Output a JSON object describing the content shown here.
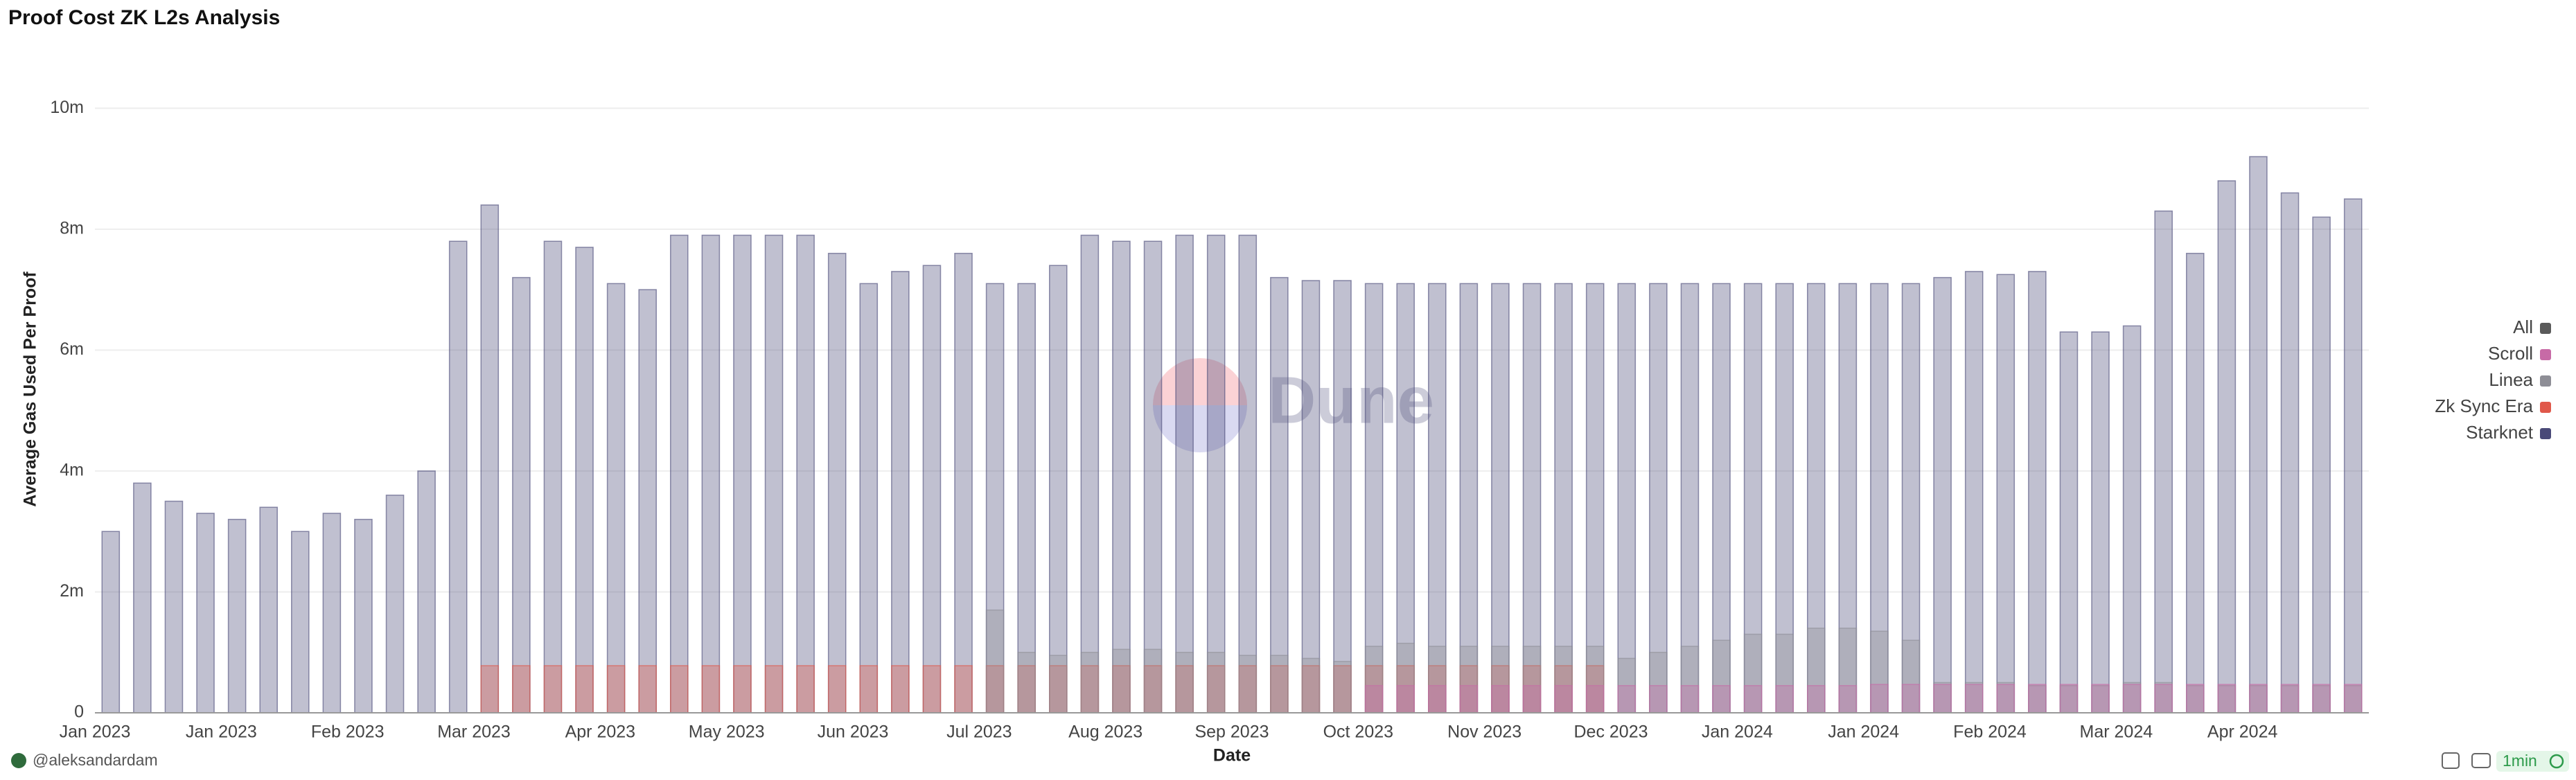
{
  "chart_data": {
    "type": "bar",
    "title": "Proof Cost ZK L2s Analysis",
    "xlabel": "Date",
    "ylabel": "Average Gas Used Per Proof",
    "watermark": "Dune",
    "footer_user": "@aleksandardam",
    "refresh": "1min",
    "grid": true,
    "legend_position": "right",
    "ylim": [
      0,
      11000000
    ],
    "yticks": [
      0,
      {
        "value": 2000000,
        "label": "2m"
      },
      {
        "value": 4000000,
        "label": "4m"
      },
      {
        "value": 6000000,
        "label": "6m"
      },
      {
        "value": 8000000,
        "label": "8m"
      },
      {
        "value": 10000000,
        "label": "10m"
      }
    ],
    "categories": [
      "Jan 2023",
      null,
      null,
      null,
      "Jan 2023",
      null,
      null,
      null,
      "Feb 2023",
      null,
      null,
      null,
      "Mar 2023",
      null,
      null,
      null,
      "Apr 2023",
      null,
      null,
      null,
      "May 2023",
      null,
      null,
      null,
      "Jun 2023",
      null,
      null,
      null,
      "Jul 2023",
      null,
      null,
      null,
      "Aug 2023",
      null,
      null,
      null,
      "Sep 2023",
      null,
      null,
      null,
      "Oct 2023",
      null,
      null,
      null,
      "Nov 2023",
      null,
      null,
      null,
      "Dec 2023",
      null,
      null,
      null,
      "Jan 2024",
      null,
      null,
      null,
      "Jan 2024",
      null,
      null,
      null,
      "Feb 2024",
      null,
      null,
      null,
      "Mar 2024",
      null,
      null,
      null,
      "Apr 2024",
      null,
      null,
      null
    ],
    "series": [
      {
        "name": "All",
        "color": "#5a5a5a",
        "values": [
          null,
          null,
          null,
          null,
          null,
          null,
          null,
          null,
          null,
          null,
          null,
          null,
          null,
          null,
          null,
          null,
          null,
          null,
          null,
          null,
          null,
          null,
          null,
          null,
          null,
          null,
          null,
          null,
          null,
          null,
          null,
          null,
          null,
          null,
          null,
          null,
          null,
          null,
          null,
          null,
          null,
          null,
          null,
          null,
          null,
          null,
          null,
          null,
          null,
          null,
          null,
          null,
          null,
          null,
          null,
          null,
          null,
          null,
          null,
          null,
          null,
          null,
          null,
          null,
          null,
          null,
          null,
          null,
          null,
          null,
          null,
          null
        ]
      },
      {
        "name": "Scroll",
        "color": "#c76aa6",
        "values": [
          null,
          null,
          null,
          null,
          null,
          null,
          null,
          null,
          null,
          null,
          null,
          null,
          null,
          null,
          null,
          null,
          null,
          null,
          null,
          null,
          null,
          null,
          null,
          null,
          null,
          null,
          null,
          null,
          null,
          null,
          null,
          null,
          null,
          null,
          null,
          null,
          null,
          null,
          null,
          null,
          450000,
          450000,
          450000,
          450000,
          450000,
          450000,
          450000,
          450000,
          450000,
          450000,
          450000,
          450000,
          450000,
          450000,
          450000,
          450000,
          470000,
          470000,
          470000,
          470000,
          470000,
          470000,
          470000,
          470000,
          470000,
          470000,
          470000,
          470000,
          470000,
          470000,
          470000,
          470000
        ]
      },
      {
        "name": "Linea",
        "color": "#8e8e96",
        "values": [
          null,
          null,
          null,
          null,
          null,
          null,
          null,
          null,
          null,
          null,
          null,
          null,
          null,
          null,
          null,
          null,
          null,
          null,
          null,
          null,
          null,
          null,
          null,
          null,
          null,
          null,
          null,
          null,
          1700000,
          1000000,
          950000,
          1000000,
          1050000,
          1050000,
          1000000,
          1000000,
          950000,
          950000,
          900000,
          850000,
          1100000,
          1150000,
          1100000,
          1100000,
          1100000,
          1100000,
          1100000,
          1100000,
          900000,
          1000000,
          1100000,
          1200000,
          1300000,
          1300000,
          1400000,
          1400000,
          1350000,
          1200000,
          500000,
          500000,
          500000,
          450000,
          450000,
          450000,
          500000,
          500000,
          450000,
          450000,
          450000,
          450000,
          450000,
          450000
        ]
      },
      {
        "name": "Zk Sync Era",
        "color": "#e0584a",
        "values": [
          null,
          null,
          null,
          null,
          null,
          null,
          null,
          null,
          null,
          null,
          null,
          null,
          780000,
          780000,
          780000,
          780000,
          780000,
          780000,
          780000,
          780000,
          780000,
          780000,
          780000,
          780000,
          780000,
          780000,
          780000,
          780000,
          780000,
          780000,
          780000,
          780000,
          780000,
          780000,
          780000,
          780000,
          780000,
          780000,
          780000,
          780000,
          780000,
          780000,
          780000,
          780000,
          780000,
          780000,
          780000,
          780000,
          null,
          null,
          null,
          null,
          null,
          null,
          null,
          null,
          null,
          null,
          null,
          null,
          null,
          null,
          null,
          null,
          null,
          null,
          null,
          null,
          null,
          null,
          null,
          null
        ]
      },
      {
        "name": "Starknet",
        "color": "#4a4a78",
        "values": [
          3000000,
          3800000,
          3500000,
          3300000,
          3200000,
          3400000,
          3000000,
          3300000,
          3200000,
          3600000,
          4000000,
          7800000,
          8400000,
          7200000,
          7800000,
          7700000,
          7100000,
          7000000,
          7900000,
          7900000,
          7900000,
          7900000,
          7900000,
          7600000,
          7100000,
          7300000,
          7400000,
          7600000,
          7100000,
          7100000,
          7400000,
          7900000,
          7800000,
          7800000,
          7900000,
          7900000,
          7900000,
          7200000,
          7150000,
          7150000,
          7100000,
          7100000,
          7100000,
          7100000,
          7100000,
          7100000,
          7100000,
          7100000,
          7100000,
          7100000,
          7100000,
          7100000,
          7100000,
          7100000,
          7100000,
          7100000,
          7100000,
          7100000,
          7200000,
          7300000,
          7250000,
          7300000,
          6300000,
          6300000,
          6400000,
          8300000,
          7600000,
          8800000,
          9200000,
          8600000,
          8200000,
          8500000
        ]
      }
    ]
  }
}
